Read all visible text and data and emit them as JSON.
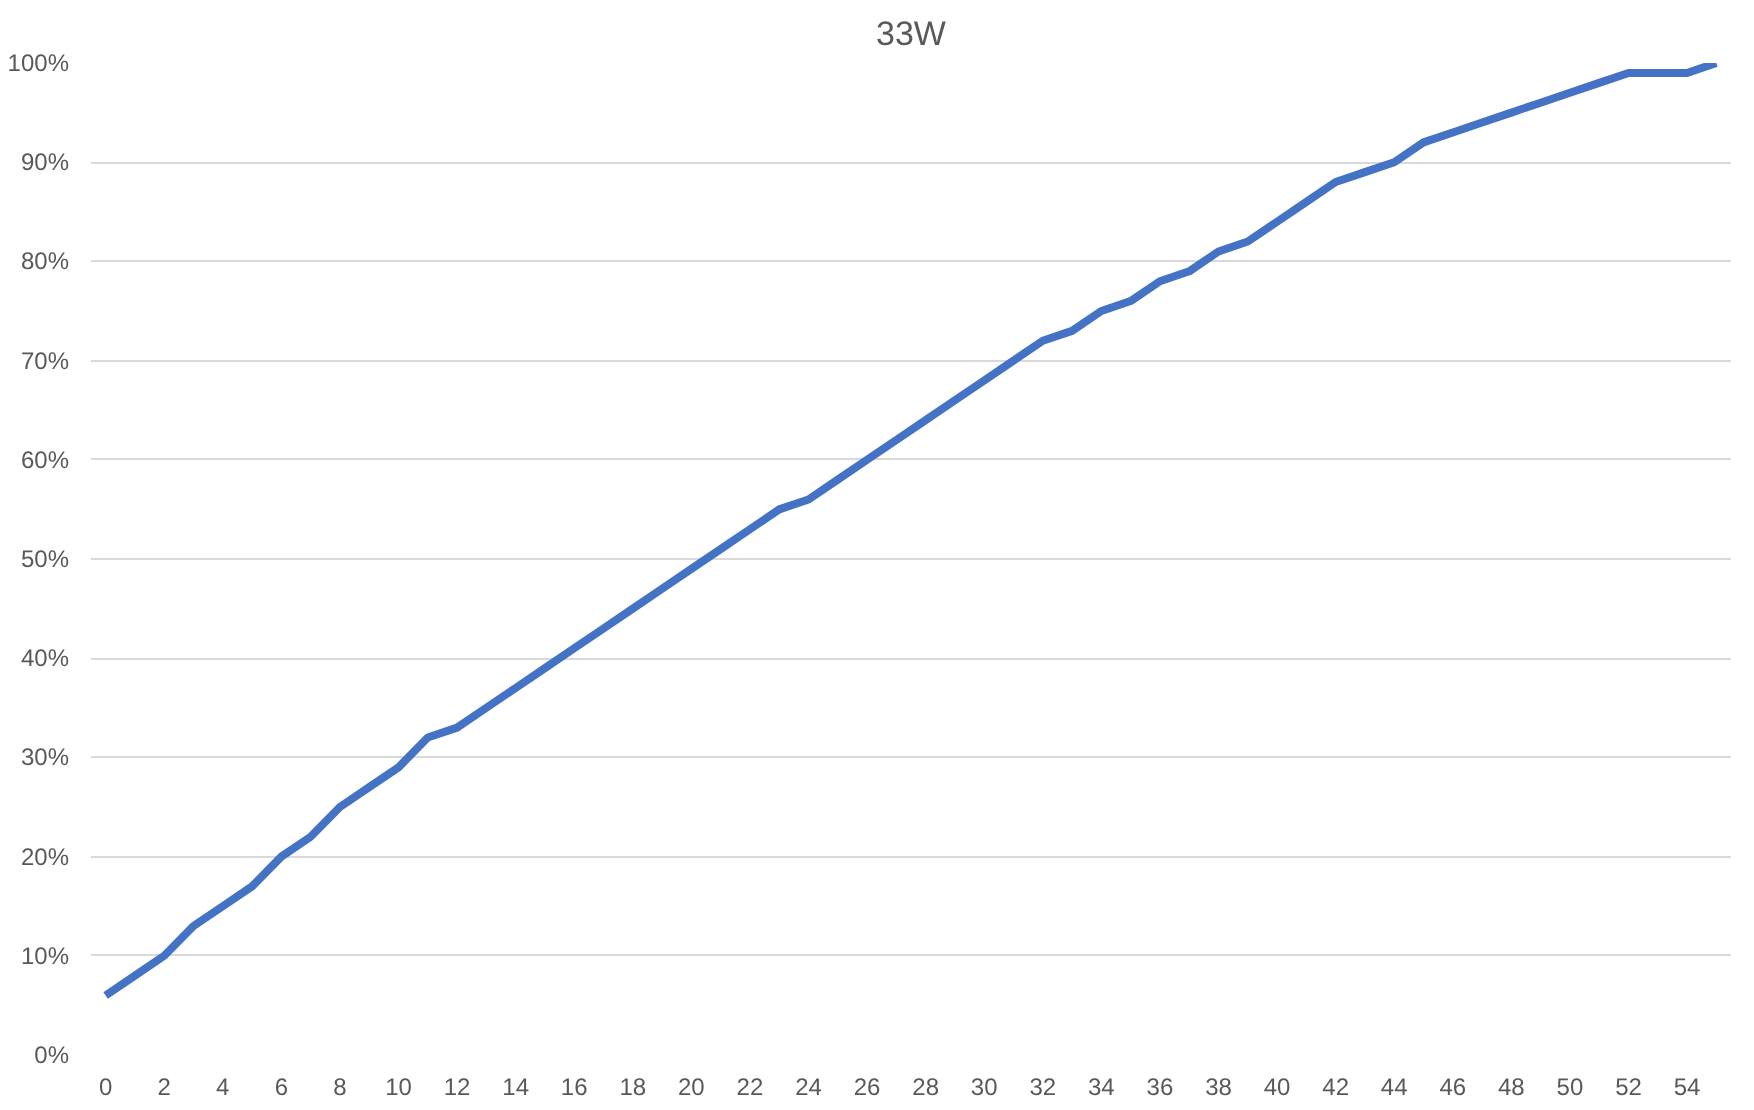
{
  "chart_data": {
    "type": "line",
    "title": "33W",
    "x": [
      0,
      1,
      2,
      3,
      4,
      5,
      6,
      7,
      8,
      9,
      10,
      11,
      12,
      13,
      14,
      15,
      16,
      17,
      18,
      19,
      20,
      21,
      22,
      23,
      24,
      25,
      26,
      27,
      28,
      29,
      30,
      31,
      32,
      33,
      34,
      35,
      36,
      37,
      38,
      39,
      40,
      41,
      42,
      43,
      44,
      45,
      46,
      47,
      48,
      49,
      50,
      51,
      52,
      53,
      54,
      55
    ],
    "series": [
      {
        "color": "#4472c4",
        "values": [
          6,
          8,
          10,
          13,
          15,
          17,
          20,
          22,
          25,
          27,
          29,
          32,
          33,
          35,
          37,
          39,
          41,
          43,
          45,
          47,
          49,
          51,
          53,
          55,
          56,
          58,
          60,
          62,
          64,
          66,
          68,
          70,
          72,
          73,
          75,
          76,
          78,
          79,
          81,
          82,
          84,
          86,
          88,
          89,
          90,
          92,
          93,
          94,
          95,
          96,
          97,
          98,
          99,
          99,
          99,
          100
        ]
      }
    ],
    "xlim": [
      -0.5,
      55.5
    ],
    "xticks": [
      0,
      2,
      4,
      6,
      8,
      10,
      12,
      14,
      16,
      18,
      20,
      22,
      24,
      26,
      28,
      30,
      32,
      34,
      36,
      38,
      40,
      42,
      44,
      46,
      48,
      50,
      52,
      54
    ],
    "ylim": [
      0,
      100
    ],
    "yticks": [
      {
        "value": 0,
        "label": "0%"
      },
      {
        "value": 10,
        "label": "10%"
      },
      {
        "value": 20,
        "label": "20%"
      },
      {
        "value": 30,
        "label": "30%"
      },
      {
        "value": 40,
        "label": "40%"
      },
      {
        "value": 50,
        "label": "50%"
      },
      {
        "value": 60,
        "label": "60%"
      },
      {
        "value": 70,
        "label": "70%"
      },
      {
        "value": 80,
        "label": "80%"
      },
      {
        "value": 90,
        "label": "90%"
      },
      {
        "value": 100,
        "label": "100%"
      }
    ],
    "grid": "y",
    "line_style": "solid",
    "marker": "none"
  }
}
